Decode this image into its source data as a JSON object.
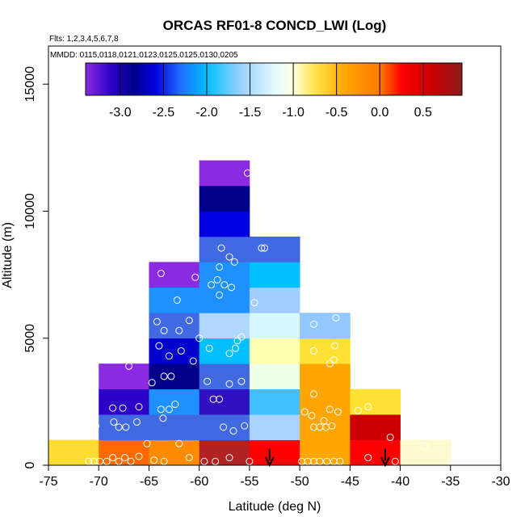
{
  "chart_data": {
    "type": "heatmap",
    "title": "ORCAS RF01-8 CONCD_LWI (Log)",
    "flights_note": "Flts: 1,2,3,4,5,6,7,8",
    "dates_note": "MMDD: 0115,0118,0121,0123,0125,0125,0130,0205",
    "xlabel": "Latitude (deg N)",
    "ylabel": "Altitude (m)",
    "xlim": [
      -75,
      -30
    ],
    "ylim": [
      0,
      16500
    ],
    "x_ticks": [
      -75,
      -70,
      -65,
      -60,
      -55,
      -50,
      -45,
      -40,
      -35,
      -30
    ],
    "x_tick_labels": [
      "-75",
      "-70",
      "-65",
      "-60",
      "-55",
      "-50",
      "-45",
      "-40",
      "-35",
      "-30"
    ],
    "y_ticks": [
      0,
      5000,
      10000,
      15000
    ],
    "y_tick_labels": [
      "0",
      "5000",
      "10000",
      "15000"
    ],
    "colorbar": {
      "range": [
        -3.4,
        0.95
      ],
      "ticks": [
        -3.0,
        -2.5,
        -2.0,
        -1.5,
        -1.0,
        -0.5,
        0.0,
        0.5
      ],
      "tick_labels": [
        "-3.0",
        "-2.5",
        "-2.0",
        "-1.5",
        "-1.0",
        "-0.5",
        "0.0",
        "0.5"
      ],
      "stops": [
        {
          "v": -3.4,
          "c": "#8a2be2"
        },
        {
          "v": -3.1,
          "c": "#2b00c8"
        },
        {
          "v": -2.85,
          "c": "#00008b"
        },
        {
          "v": -2.6,
          "c": "#0000e0"
        },
        {
          "v": -2.3,
          "c": "#1f6fff"
        },
        {
          "v": -2.0,
          "c": "#00bfff"
        },
        {
          "v": -1.6,
          "c": "#9ad2ff"
        },
        {
          "v": -1.2,
          "c": "#e6fbff"
        },
        {
          "v": -1.0,
          "c": "#ffffe0"
        },
        {
          "v": -0.75,
          "c": "#ffe44a"
        },
        {
          "v": -0.4,
          "c": "#ffa500"
        },
        {
          "v": 0.0,
          "c": "#ff7a00"
        },
        {
          "v": 0.25,
          "c": "#ff0000"
        },
        {
          "v": 0.6,
          "c": "#cc0000"
        },
        {
          "v": 0.95,
          "c": "#8b1a1a"
        }
      ]
    },
    "cell_lat_width": 5,
    "cell_alt_height": 1000,
    "cells": [
      {
        "lat": -75,
        "alt": 0,
        "color": "#ffdd33"
      },
      {
        "lat": -70,
        "alt": 0,
        "color": "#ff6a00"
      },
      {
        "lat": -65,
        "alt": 0,
        "color": "#ff8c00"
      },
      {
        "lat": -60,
        "alt": 0,
        "color": "#b22222"
      },
      {
        "lat": -55,
        "alt": 0,
        "color": "#ff0000"
      },
      {
        "lat": -50,
        "alt": 0,
        "color": "#ffa500"
      },
      {
        "lat": -45,
        "alt": 0,
        "color": "#ff0000"
      },
      {
        "lat": -40,
        "alt": 0,
        "color": "#fffacd"
      },
      {
        "lat": -70,
        "alt": 1000,
        "color": "#4169e1"
      },
      {
        "lat": -65,
        "alt": 1000,
        "color": "#4169e1"
      },
      {
        "lat": -60,
        "alt": 1000,
        "color": "#4169e1"
      },
      {
        "lat": -55,
        "alt": 1000,
        "color": "#aad4ff"
      },
      {
        "lat": -50,
        "alt": 1000,
        "color": "#ffa500"
      },
      {
        "lat": -45,
        "alt": 1000,
        "color": "#cc0000"
      },
      {
        "lat": -70,
        "alt": 2000,
        "color": "#2b00c8"
      },
      {
        "lat": -65,
        "alt": 2000,
        "color": "#1e90ff"
      },
      {
        "lat": -60,
        "alt": 2000,
        "color": "#3010c0"
      },
      {
        "lat": -55,
        "alt": 2000,
        "color": "#40c0ff"
      },
      {
        "lat": -50,
        "alt": 2000,
        "color": "#ffa500"
      },
      {
        "lat": -45,
        "alt": 2000,
        "color": "#ffe033"
      },
      {
        "lat": -70,
        "alt": 3000,
        "color": "#8a2be2"
      },
      {
        "lat": -65,
        "alt": 3000,
        "color": "#00008b"
      },
      {
        "lat": -60,
        "alt": 3000,
        "color": "#4169e1"
      },
      {
        "lat": -55,
        "alt": 3000,
        "color": "#f0ffe8"
      },
      {
        "lat": -50,
        "alt": 3000,
        "color": "#ffa500"
      },
      {
        "lat": -65,
        "alt": 4000,
        "color": "#0000cd"
      },
      {
        "lat": -60,
        "alt": 4000,
        "color": "#00bfff"
      },
      {
        "lat": -55,
        "alt": 4000,
        "color": "#ffffb0"
      },
      {
        "lat": -50,
        "alt": 4000,
        "color": "#ffe033"
      },
      {
        "lat": -65,
        "alt": 5000,
        "color": "#4169e1"
      },
      {
        "lat": -60,
        "alt": 5000,
        "color": "#b0d8ff"
      },
      {
        "lat": -55,
        "alt": 5000,
        "color": "#d8f8ff"
      },
      {
        "lat": -50,
        "alt": 5000,
        "color": "#90c8ff"
      },
      {
        "lat": -65,
        "alt": 6000,
        "color": "#1e90ff"
      },
      {
        "lat": -60,
        "alt": 6000,
        "color": "#1e90ff"
      },
      {
        "lat": -55,
        "alt": 6000,
        "color": "#a0ccff"
      },
      {
        "lat": -65,
        "alt": 7000,
        "color": "#8a2be2"
      },
      {
        "lat": -60,
        "alt": 7000,
        "color": "#1e90ff"
      },
      {
        "lat": -55,
        "alt": 7000,
        "color": "#00bfff"
      },
      {
        "lat": -60,
        "alt": 8000,
        "color": "#4169e1"
      },
      {
        "lat": -55,
        "alt": 8000,
        "color": "#4169e1"
      },
      {
        "lat": -60,
        "alt": 9000,
        "color": "#0000e0"
      },
      {
        "lat": -60,
        "alt": 10000,
        "color": "#00008b"
      },
      {
        "lat": -60,
        "alt": 11000,
        "color": "#8a2be2"
      }
    ],
    "samples": [
      {
        "lat": -71.0,
        "alt": 150
      },
      {
        "lat": -70.5,
        "alt": 150
      },
      {
        "lat": -69.9,
        "alt": 150
      },
      {
        "lat": -69.2,
        "alt": 150
      },
      {
        "lat": -68.6,
        "alt": 300
      },
      {
        "lat": -68.0,
        "alt": 150
      },
      {
        "lat": -67.4,
        "alt": 300
      },
      {
        "lat": -66.8,
        "alt": 150
      },
      {
        "lat": -66.0,
        "alt": 350
      },
      {
        "lat": -65.2,
        "alt": 850
      },
      {
        "lat": -70.3,
        "alt": 1550
      },
      {
        "lat": -68.5,
        "alt": 1700
      },
      {
        "lat": -68.0,
        "alt": 1500
      },
      {
        "lat": -67.3,
        "alt": 1500
      },
      {
        "lat": -66.2,
        "alt": 1700
      },
      {
        "lat": -68.6,
        "alt": 2250
      },
      {
        "lat": -67.6,
        "alt": 2250
      },
      {
        "lat": -66.0,
        "alt": 2300
      },
      {
        "lat": -67.0,
        "alt": 3900
      },
      {
        "lat": -64.7,
        "alt": 3250
      },
      {
        "lat": -63.8,
        "alt": 2200
      },
      {
        "lat": -63.0,
        "alt": 2200
      },
      {
        "lat": -63.6,
        "alt": 1850
      },
      {
        "lat": -64.5,
        "alt": 200
      },
      {
        "lat": -63.5,
        "alt": 150
      },
      {
        "lat": -62.0,
        "alt": 850
      },
      {
        "lat": -61.0,
        "alt": 300
      },
      {
        "lat": -62.4,
        "alt": 2400
      },
      {
        "lat": -63.5,
        "alt": 3500
      },
      {
        "lat": -62.8,
        "alt": 3500
      },
      {
        "lat": -64.0,
        "alt": 4700
      },
      {
        "lat": -63.0,
        "alt": 4300
      },
      {
        "lat": -61.8,
        "alt": 4500
      },
      {
        "lat": -60.6,
        "alt": 4100
      },
      {
        "lat": -64.2,
        "alt": 5650
      },
      {
        "lat": -63.5,
        "alt": 5300
      },
      {
        "lat": -62.0,
        "alt": 5300
      },
      {
        "lat": -61.0,
        "alt": 5700
      },
      {
        "lat": -60.0,
        "alt": 5000
      },
      {
        "lat": -62.2,
        "alt": 6500
      },
      {
        "lat": -60.4,
        "alt": 7400
      },
      {
        "lat": -63.8,
        "alt": 7550
      },
      {
        "lat": -59.2,
        "alt": 3300
      },
      {
        "lat": -58.6,
        "alt": 2600
      },
      {
        "lat": -58.0,
        "alt": 2600
      },
      {
        "lat": -57.6,
        "alt": 1500
      },
      {
        "lat": -56.6,
        "alt": 1350
      },
      {
        "lat": -59.0,
        "alt": 4600
      },
      {
        "lat": -57.0,
        "alt": 4400
      },
      {
        "lat": -56.4,
        "alt": 4600
      },
      {
        "lat": -55.8,
        "alt": 5050
      },
      {
        "lat": -55.8,
        "alt": 3300
      },
      {
        "lat": -57.0,
        "alt": 3200
      },
      {
        "lat": -56.2,
        "alt": 4900
      },
      {
        "lat": -58.8,
        "alt": 7100
      },
      {
        "lat": -58.2,
        "alt": 7300
      },
      {
        "lat": -57.5,
        "alt": 7100
      },
      {
        "lat": -56.8,
        "alt": 7000
      },
      {
        "lat": -58.0,
        "alt": 7800
      },
      {
        "lat": -57.0,
        "alt": 8200
      },
      {
        "lat": -57.8,
        "alt": 8550
      },
      {
        "lat": -56.5,
        "alt": 8000
      },
      {
        "lat": -58.0,
        "alt": 6700
      },
      {
        "lat": -55.2,
        "alt": 11500
      },
      {
        "lat": -53.8,
        "alt": 8550
      },
      {
        "lat": -53.5,
        "alt": 8550
      },
      {
        "lat": -54.5,
        "alt": 6400
      },
      {
        "lat": -55.5,
        "alt": 1550
      },
      {
        "lat": -57.0,
        "alt": 300
      },
      {
        "lat": -59.5,
        "alt": 150
      },
      {
        "lat": -58.4,
        "alt": 150
      },
      {
        "lat": -55.0,
        "alt": 150
      },
      {
        "lat": -49.5,
        "alt": 2100
      },
      {
        "lat": -48.8,
        "alt": 1950
      },
      {
        "lat": -48.0,
        "alt": 1500
      },
      {
        "lat": -47.4,
        "alt": 1500
      },
      {
        "lat": -46.8,
        "alt": 1550
      },
      {
        "lat": -47.6,
        "alt": 1750
      },
      {
        "lat": -47.0,
        "alt": 2200
      },
      {
        "lat": -46.2,
        "alt": 2100
      },
      {
        "lat": -48.6,
        "alt": 1500
      },
      {
        "lat": -48.6,
        "alt": 2800
      },
      {
        "lat": -47.0,
        "alt": 4000
      },
      {
        "lat": -46.6,
        "alt": 4150
      },
      {
        "lat": -46.5,
        "alt": 4700
      },
      {
        "lat": -48.6,
        "alt": 4500
      },
      {
        "lat": -48.6,
        "alt": 5550
      },
      {
        "lat": -46.4,
        "alt": 5800
      },
      {
        "lat": -49.8,
        "alt": 150
      },
      {
        "lat": -49.2,
        "alt": 150
      },
      {
        "lat": -48.6,
        "alt": 150
      },
      {
        "lat": -48.0,
        "alt": 150
      },
      {
        "lat": -47.3,
        "alt": 150
      },
      {
        "lat": -46.6,
        "alt": 150
      },
      {
        "lat": -46.0,
        "alt": 150
      },
      {
        "lat": -44.2,
        "alt": 2150
      },
      {
        "lat": -43.2,
        "alt": 2300
      },
      {
        "lat": -41.0,
        "alt": 1100
      },
      {
        "lat": -43.2,
        "alt": 300
      },
      {
        "lat": -40.5,
        "alt": 150
      },
      {
        "lat": -37.6,
        "alt": 750
      },
      {
        "lat": -35.0,
        "alt": 150
      }
    ],
    "markers": [
      {
        "lat": -53.0,
        "alt_top": 650,
        "alt_bottom": 0
      },
      {
        "lat": -41.5,
        "alt_top": 650,
        "alt_bottom": 0
      }
    ]
  }
}
